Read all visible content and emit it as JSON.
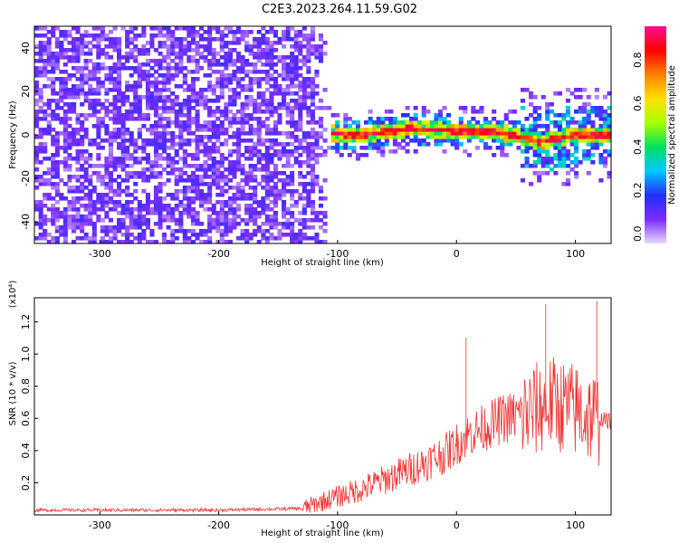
{
  "title": "C2E3.2023.264.11.59.G02",
  "chart_data": [
    {
      "type": "heatmap",
      "xlabel": "Height of straight line (km)",
      "ylabel": "Frequency (Hz)",
      "xlim": [
        -355,
        130
      ],
      "ylim": [
        -50,
        50
      ],
      "x_ticks": [
        -300,
        -200,
        -100,
        0,
        100
      ],
      "y_ticks": [
        -40,
        -20,
        0,
        20,
        40
      ],
      "colorbar": {
        "label": "Normalized spectral amplitude",
        "range": [
          0,
          1
        ],
        "ticks": [
          0.0,
          0.2,
          0.4,
          0.6,
          0.8
        ],
        "tick_labels": [
          "0.0",
          "0.2",
          "0.4",
          "0.6",
          "0.8"
        ],
        "colormap": [
          "#e8d8ff",
          "#7b2cff",
          "#2030ff",
          "#00c8ff",
          "#00e060",
          "#aaff00",
          "#ffe000",
          "#ff8000",
          "#ff0000",
          "#ff1090"
        ]
      },
      "noise_region_km": [
        -355,
        -105
      ],
      "ridge": {
        "description_points": [
          {
            "x": -115,
            "y": 1
          },
          {
            "x": -80,
            "y": 0
          },
          {
            "x": -40,
            "y": 3
          },
          {
            "x": 0,
            "y": 2
          },
          {
            "x": 40,
            "y": 1
          },
          {
            "x": 70,
            "y": -3
          },
          {
            "x": 100,
            "y": 0
          },
          {
            "x": 128,
            "y": 0
          }
        ]
      }
    },
    {
      "type": "line",
      "xlabel": "Height of straight line (km)",
      "ylabel": "SNR (10 * v/v)",
      "y_multiplier": "(x10⁴)",
      "xlim": [
        -355,
        130
      ],
      "ylim": [
        0,
        1.35
      ],
      "x_ticks": [
        -300,
        -200,
        -100,
        0,
        100
      ],
      "y_ticks": [
        0.2,
        0.4,
        0.6,
        0.8,
        1.0,
        1.2
      ],
      "y_tick_labels": [
        "0.2",
        "0.4",
        "0.6",
        "0.8",
        "1.0",
        "1.2"
      ],
      "color": "#ee3333",
      "envelope": [
        {
          "x": -355,
          "y": 0.03
        },
        {
          "x": -200,
          "y": 0.03
        },
        {
          "x": -130,
          "y": 0.04
        },
        {
          "x": -110,
          "y": 0.09
        },
        {
          "x": -80,
          "y": 0.16
        },
        {
          "x": -40,
          "y": 0.28
        },
        {
          "x": -10,
          "y": 0.38
        },
        {
          "x": 10,
          "y": 0.5
        },
        {
          "x": 40,
          "y": 0.6
        },
        {
          "x": 60,
          "y": 0.63
        },
        {
          "x": 80,
          "y": 0.7
        },
        {
          "x": 100,
          "y": 0.65
        },
        {
          "x": 118,
          "y": 0.6
        },
        {
          "x": 130,
          "y": 0.58
        }
      ],
      "spikes": [
        {
          "x": 8,
          "y": 1.1
        },
        {
          "x": 75,
          "y": 1.31
        },
        {
          "x": 118,
          "y": 1.33
        }
      ]
    }
  ]
}
